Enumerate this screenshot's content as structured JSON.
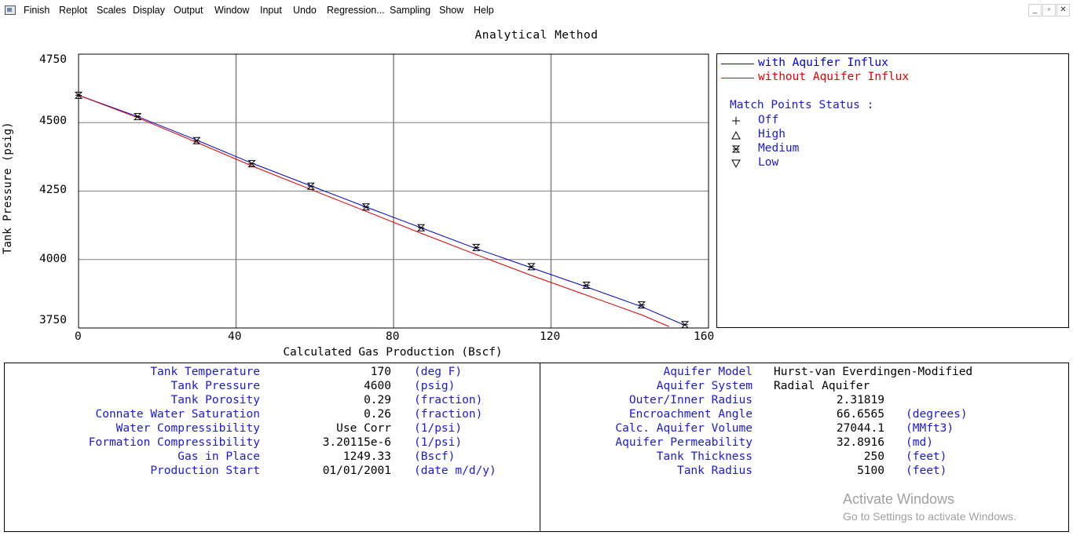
{
  "menu": {
    "items": [
      "Finish",
      "Replot",
      "Scales",
      "Display",
      "Output",
      "Window",
      "Input",
      "Undo",
      "Regression...",
      "Sampling",
      "Show",
      "Help"
    ],
    "window_controls": [
      "_",
      "▫",
      "✕"
    ]
  },
  "chart_data": {
    "type": "line",
    "title": "Analytical Method",
    "xlabel": "Calculated Gas Production (Bscf)",
    "ylabel": "Tank Pressure (psig)",
    "xlim": [
      0,
      160
    ],
    "ylim": [
      3750,
      4750
    ],
    "x_ticks": [
      "0",
      "40",
      "80",
      "120",
      "160"
    ],
    "y_ticks": [
      "4750",
      "4500",
      "4250",
      "4000",
      "3750"
    ],
    "grid": true,
    "series": [
      {
        "name": "with Aquifer Influx",
        "color": "#0000cc",
        "x": [
          0,
          15,
          30,
          44,
          59,
          73,
          87,
          101,
          115,
          129,
          143,
          154
        ],
        "y": [
          4600,
          4522,
          4436,
          4352,
          4269,
          4192,
          4116,
          4040,
          3970,
          3900,
          3828,
          3760
        ]
      },
      {
        "name": "without Aquifer Influx",
        "color": "#e00000",
        "x": [
          0,
          15,
          30,
          44,
          59,
          73,
          87,
          101,
          115,
          129,
          143,
          150
        ],
        "y": [
          4600,
          4518,
          4428,
          4342,
          4256,
          4176,
          4096,
          4018,
          3942,
          3870,
          3798,
          3755
        ]
      }
    ],
    "match_points": {
      "status": "Medium",
      "x": [
        0,
        15,
        30,
        44,
        59,
        73,
        87,
        101,
        115,
        129,
        143,
        154
      ],
      "y": [
        4600,
        4522,
        4434,
        4350,
        4268,
        4192,
        4116,
        4044,
        3974,
        3906,
        3834,
        3762
      ]
    },
    "legend_position": "right"
  },
  "legend": {
    "series": [
      {
        "label": "with Aquifer Influx",
        "color": "#0000cc"
      },
      {
        "label": "without Aquifer Influx",
        "color": "#e00000"
      }
    ],
    "status_title": "Match Points Status :",
    "status_items": [
      {
        "symbol": "plus-icon",
        "label": "Off"
      },
      {
        "symbol": "triangle-up-icon",
        "label": "High"
      },
      {
        "symbol": "hourglass-icon",
        "label": "Medium"
      },
      {
        "symbol": "triangle-down-icon",
        "label": "Low"
      }
    ]
  },
  "tank": [
    {
      "label": "Tank Temperature",
      "value": "170",
      "unit": "(deg F)"
    },
    {
      "label": "Tank Pressure",
      "value": "4600",
      "unit": "(psig)"
    },
    {
      "label": "Tank Porosity",
      "value": "0.29",
      "unit": "(fraction)"
    },
    {
      "label": "Connate Water Saturation",
      "value": "0.26",
      "unit": "(fraction)"
    },
    {
      "label": "Water Compressibility",
      "value": "Use Corr",
      "unit": "(1/psi)"
    },
    {
      "label": "Formation Compressibility",
      "value": "3.20115e-6",
      "unit": "(1/psi)"
    },
    {
      "label": "Gas in Place",
      "value": "1249.33",
      "unit": "(Bscf)"
    },
    {
      "label": "Production Start",
      "value": "01/01/2001",
      "unit": "(date m/d/y)"
    }
  ],
  "aquifer": [
    {
      "label": "Aquifer Model",
      "value": "Hurst-van Everdingen-Modified",
      "unit": "",
      "align": "left"
    },
    {
      "label": "Aquifer System",
      "value": "Radial Aquifer",
      "unit": "",
      "align": "left"
    },
    {
      "label": "Outer/Inner Radius",
      "value": "2.31819",
      "unit": "",
      "align": "right"
    },
    {
      "label": "Encroachment Angle",
      "value": "66.6565",
      "unit": "(degrees)",
      "align": "right"
    },
    {
      "label": "Calc. Aquifer Volume",
      "value": "27044.1",
      "unit": "(MMft3)",
      "align": "right"
    },
    {
      "label": "Aquifer Permeability",
      "value": "32.8916",
      "unit": "(md)",
      "align": "right"
    },
    {
      "label": "Tank Thickness",
      "value": "250",
      "unit": "(feet)",
      "align": "right"
    },
    {
      "label": "Tank Radius",
      "value": "5100",
      "unit": "(feet)",
      "align": "right"
    }
  ],
  "watermark": {
    "line1": "Activate Windows",
    "line2": "Go to Settings to activate Windows."
  }
}
